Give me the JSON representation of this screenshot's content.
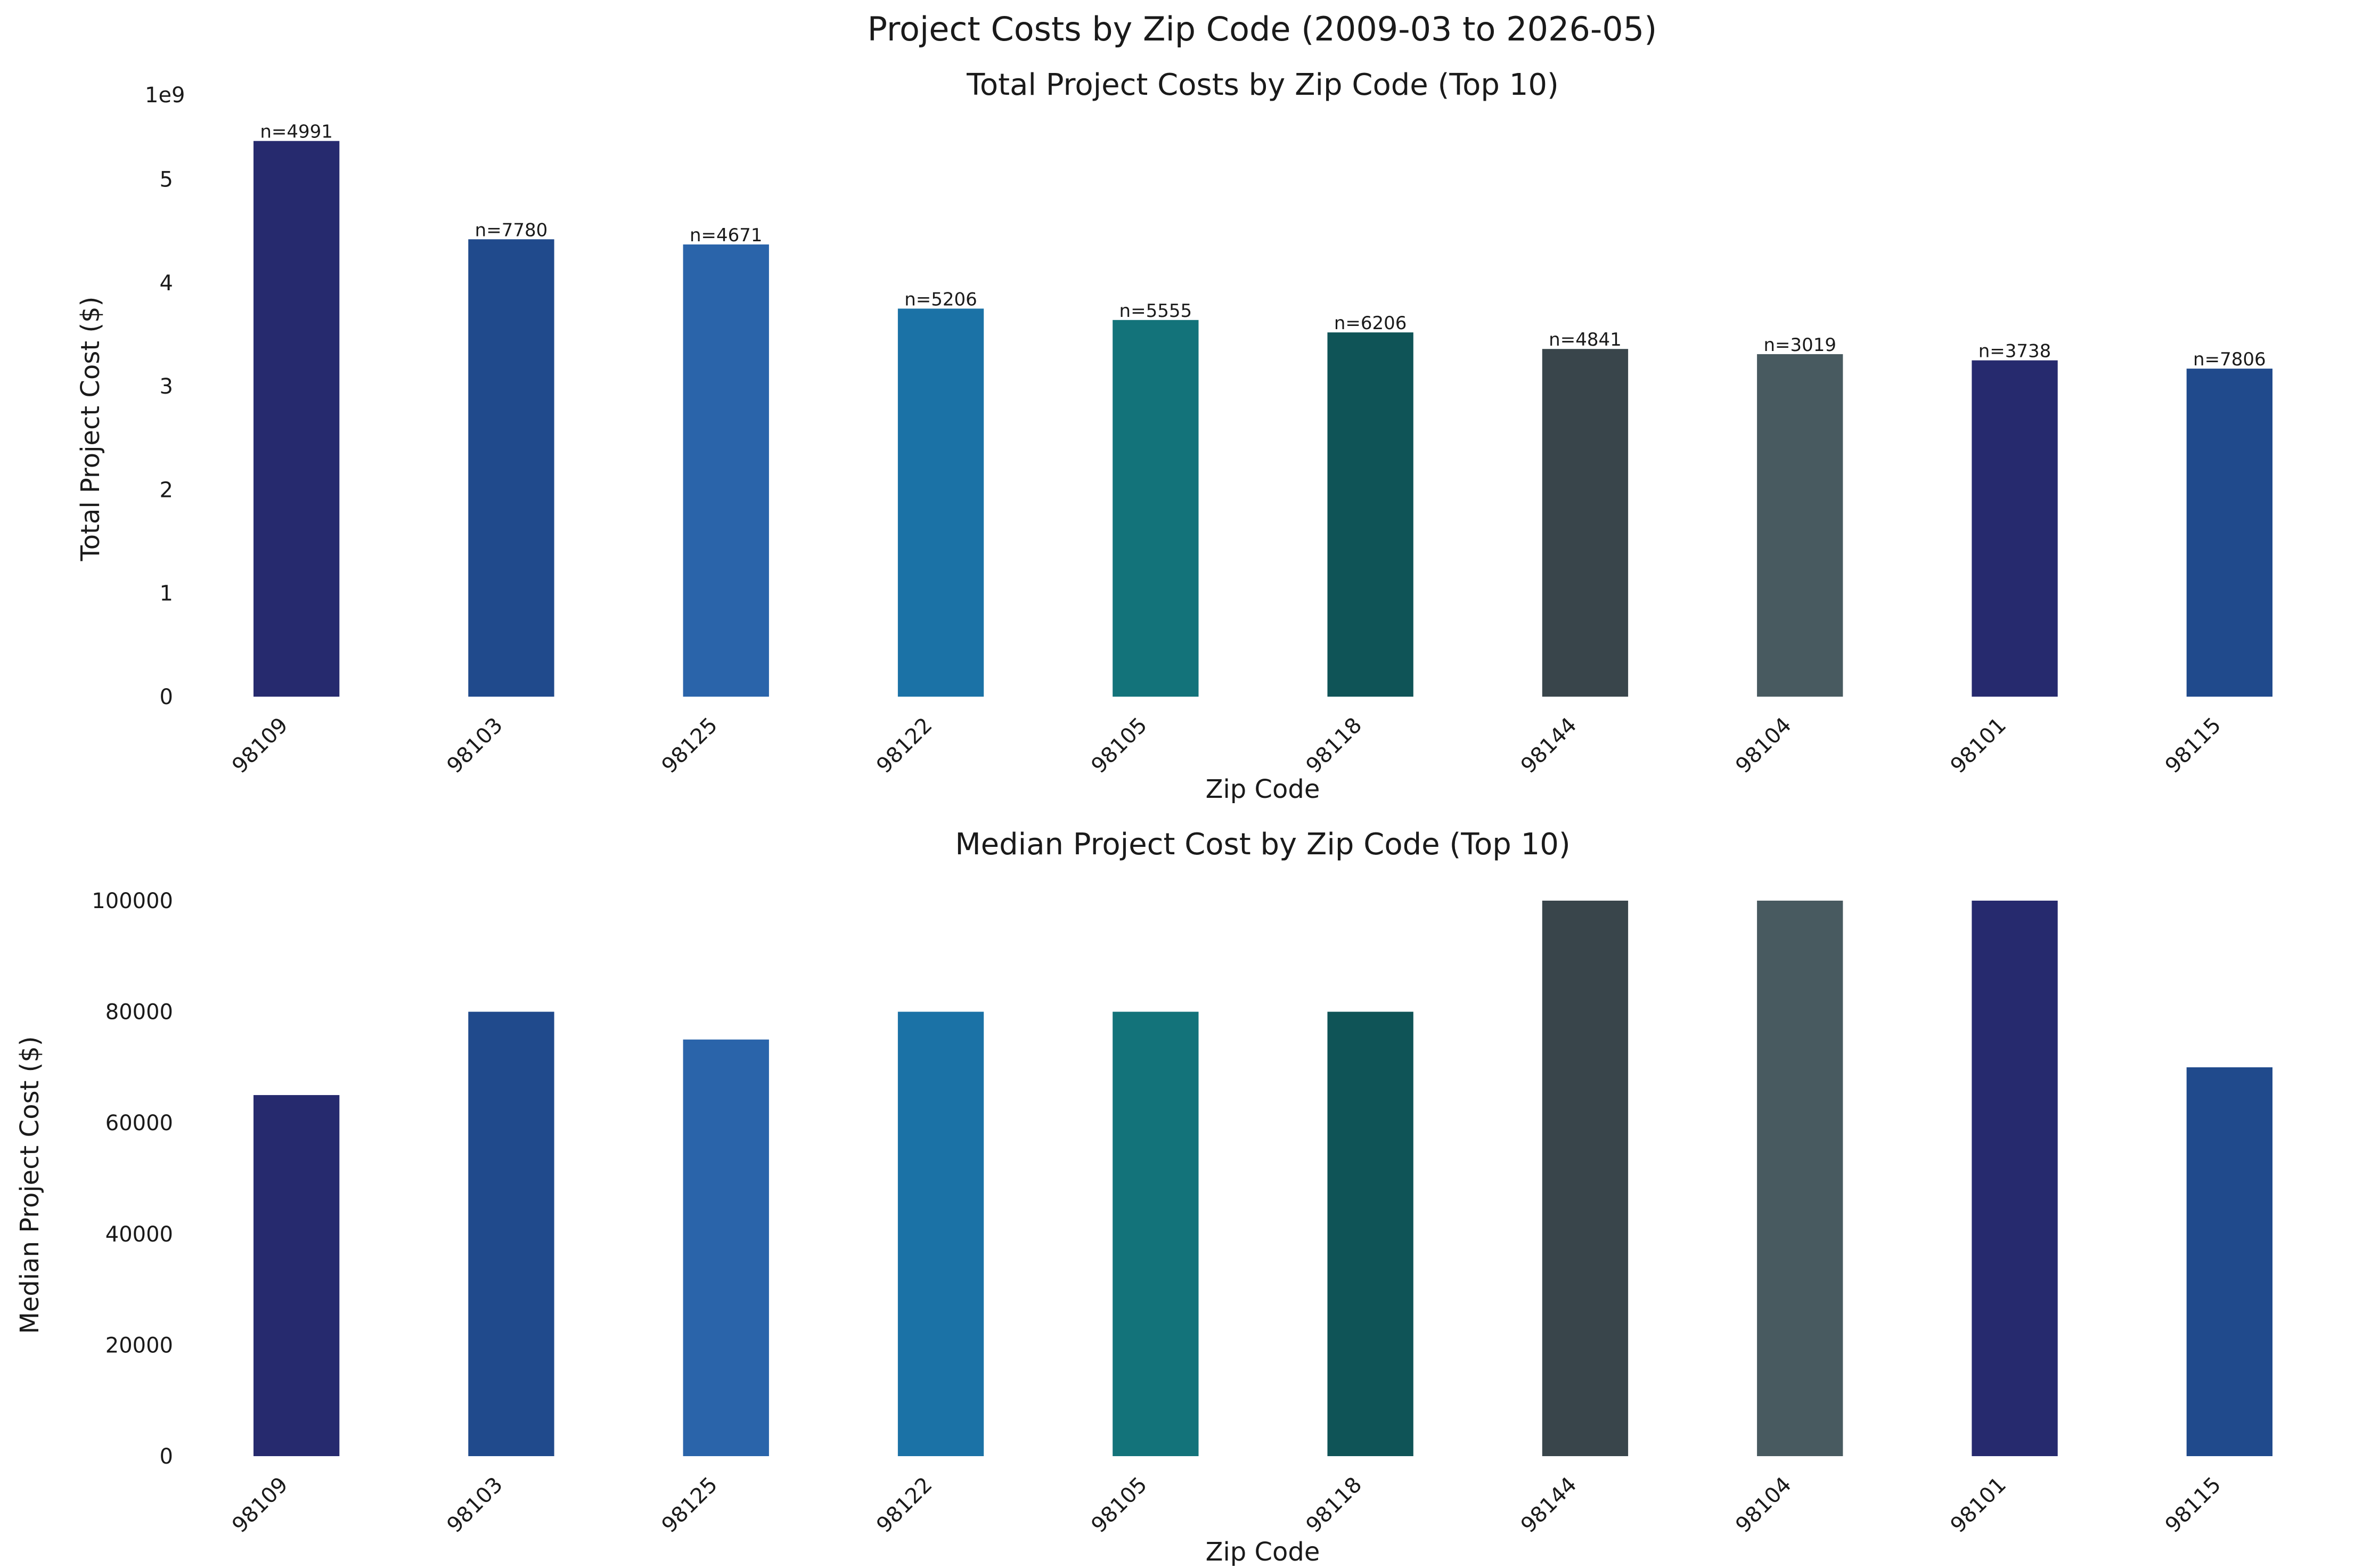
{
  "figure": {
    "suptitle": "Project Costs by Zip Code (2009-03 to 2026-05)"
  },
  "chart_data": [
    {
      "type": "bar",
      "title": "Total Project Costs by Zip Code (Top 10)",
      "xlabel": "Zip Code",
      "ylabel": "Total Project Cost ($)",
      "offset_text": "1e9",
      "categories": [
        "98109",
        "98103",
        "98125",
        "98122",
        "98105",
        "98118",
        "98144",
        "98104",
        "98101",
        "98115"
      ],
      "values": [
        5370000000.0,
        4420000000.0,
        4370000000.0,
        3750000000.0,
        3640000000.0,
        3520000000.0,
        3360000000.0,
        3310000000.0,
        3250000000.0,
        3170000000.0
      ],
      "bar_labels": [
        "n=4991",
        "n=7780",
        "n=4671",
        "n=5206",
        "n=5555",
        "n=6206",
        "n=4841",
        "n=3019",
        "n=3738",
        "n=7806"
      ],
      "ylim": [
        0,
        5600000000.0
      ],
      "yticks": [
        0,
        1000000000.0,
        2000000000.0,
        3000000000.0,
        4000000000.0,
        5000000000.0
      ],
      "ytick_labels": [
        "0",
        "1",
        "2",
        "3",
        "4",
        "5"
      ],
      "grid": false,
      "colors": [
        "#262a6e",
        "#204a8c",
        "#2a64aa",
        "#1b72a6",
        "#13737a",
        "#0f5457",
        "#39454b",
        "#485a60",
        "#262a6e",
        "#204a8c"
      ]
    },
    {
      "type": "bar",
      "title": "Median Project Cost by Zip Code (Top 10)",
      "xlabel": "Zip Code",
      "ylabel": "Median Project Cost ($)",
      "categories": [
        "98109",
        "98103",
        "98125",
        "98122",
        "98105",
        "98118",
        "98144",
        "98104",
        "98101",
        "98115"
      ],
      "values": [
        65000,
        80000,
        75000,
        80000,
        80000,
        80000,
        100000,
        100000,
        100000,
        70000
      ],
      "ylim": [
        0,
        100000
      ],
      "yticks": [
        0,
        20000,
        40000,
        60000,
        80000,
        100000
      ],
      "ytick_labels": [
        "0",
        "20000",
        "40000",
        "60000",
        "80000",
        "100000"
      ],
      "grid": false,
      "colors": [
        "#262a6e",
        "#204a8c",
        "#2a64aa",
        "#1b72a6",
        "#13737a",
        "#0f5457",
        "#39454b",
        "#485a60",
        "#262a6e",
        "#204a8c"
      ]
    }
  ]
}
